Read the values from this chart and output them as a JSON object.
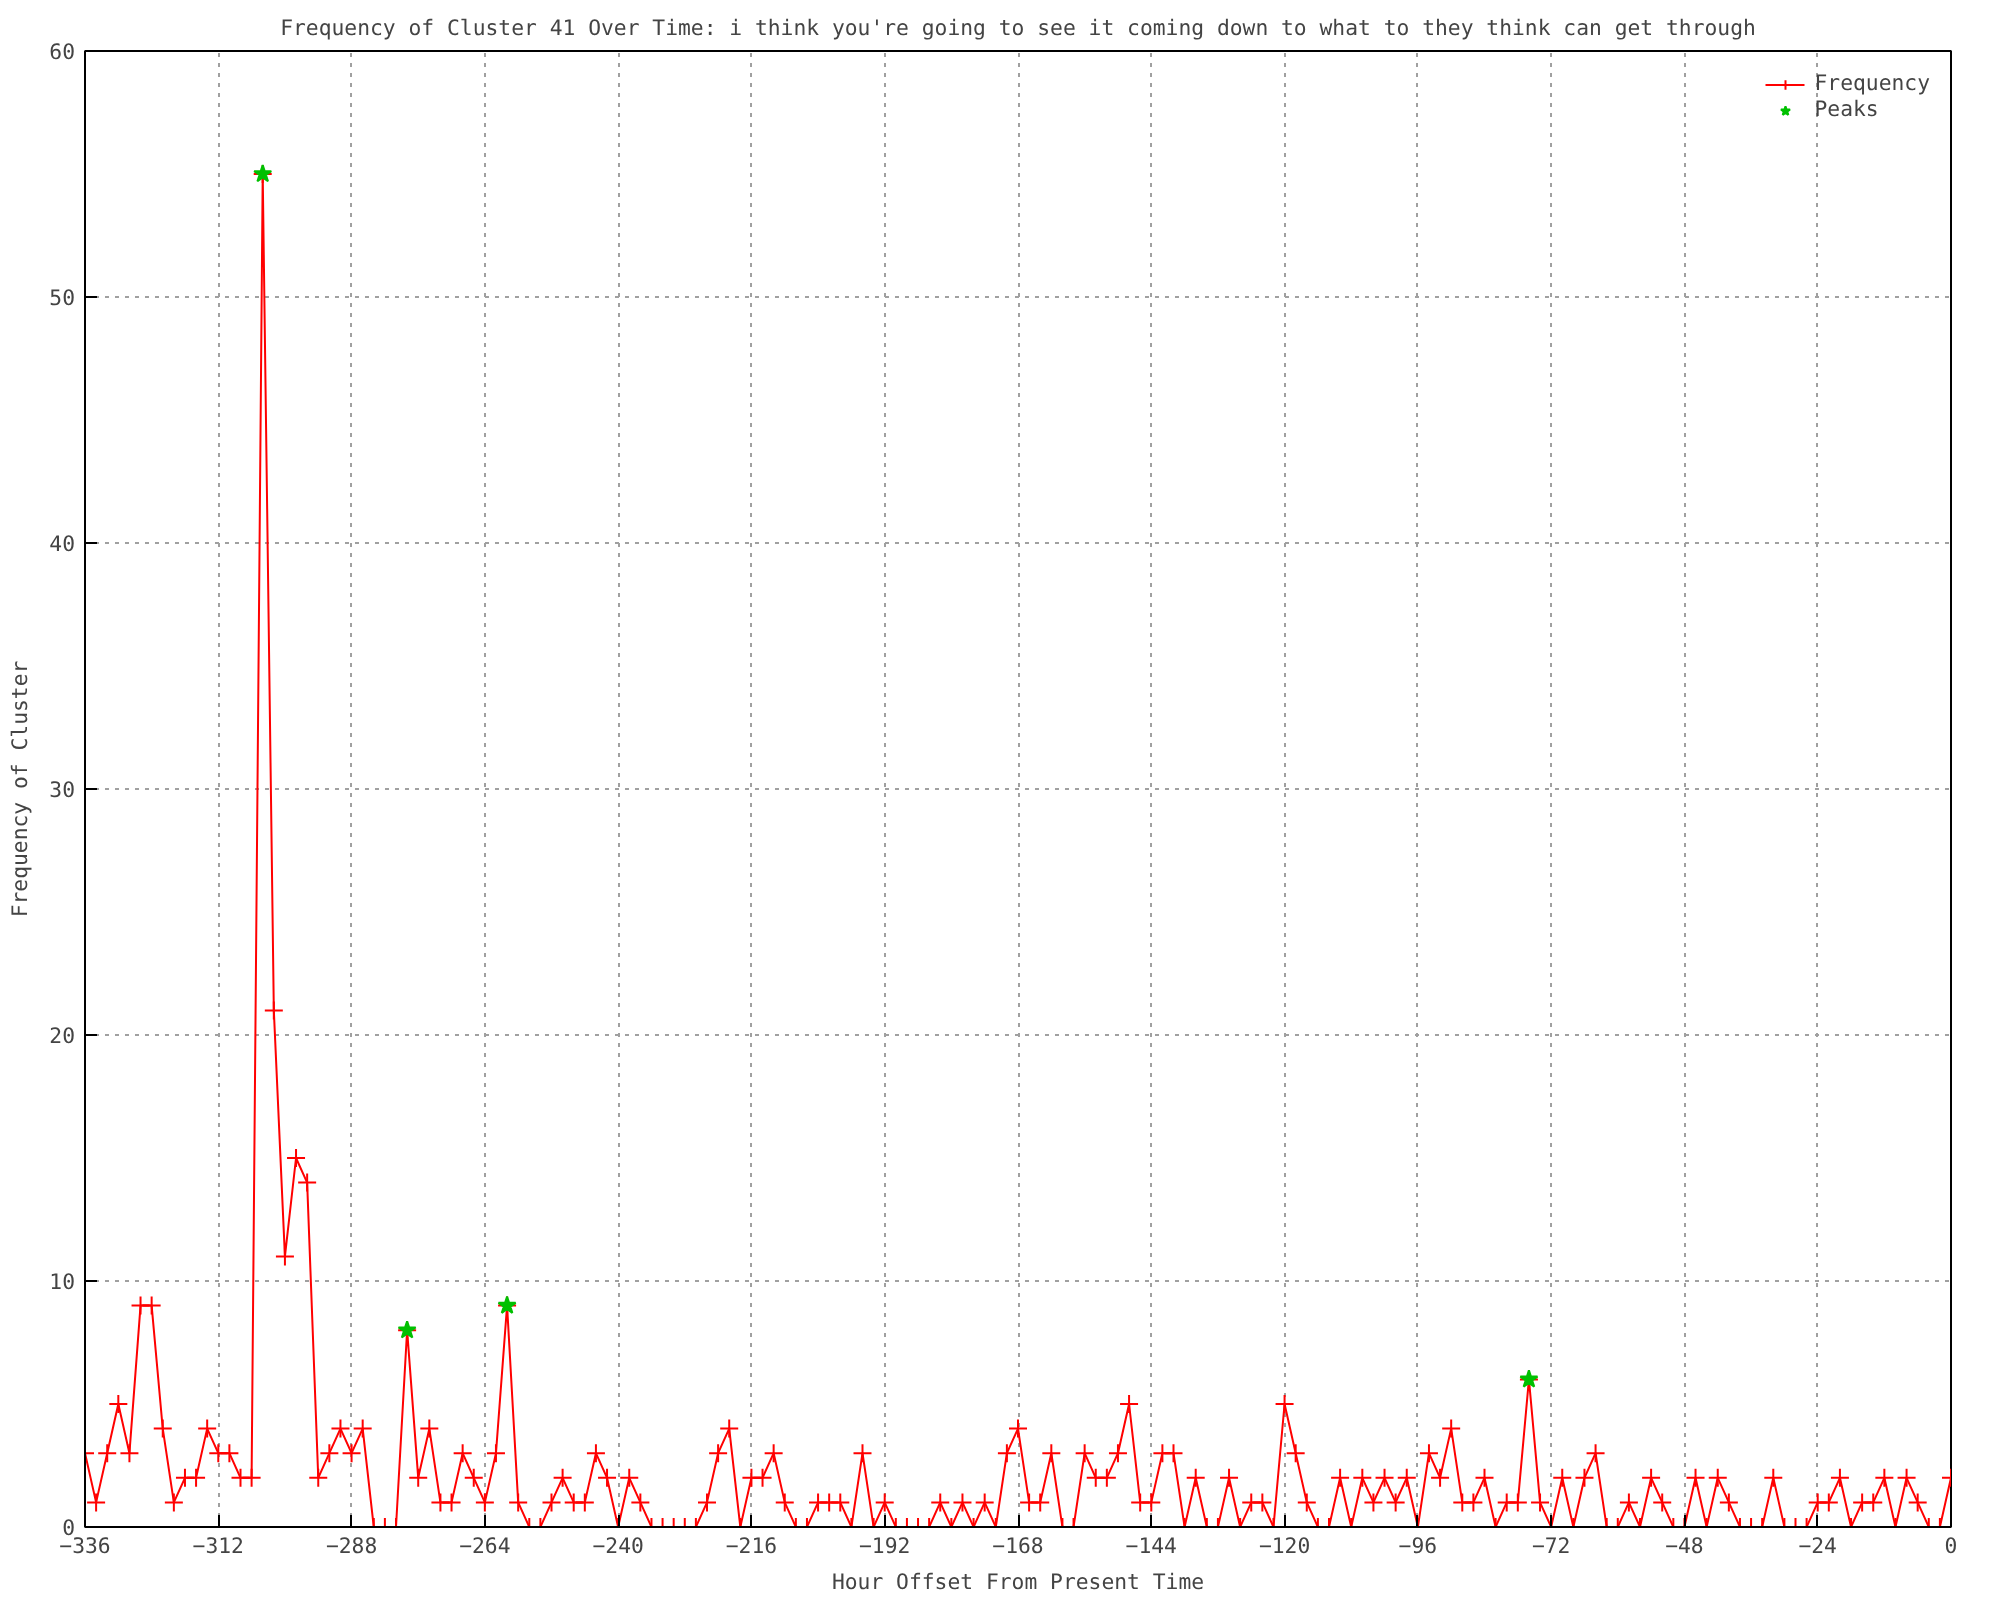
{
  "chart_data": {
    "type": "line",
    "title": "Frequency of Cluster 41 Over Time: i think you're going to see it coming down to what to they think can get through",
    "xlabel": "Hour Offset From Present Time",
    "ylabel": "Frequency of Cluster",
    "x": [
      -336,
      -334,
      -332,
      -330,
      -328,
      -326,
      -324,
      -322,
      -320,
      -318,
      -316,
      -314,
      -312,
      -310,
      -308,
      -306,
      -304,
      -302,
      -300,
      -298,
      -296,
      -294,
      -292,
      -290,
      -288,
      -286,
      -284,
      -282,
      -280,
      -278,
      -276,
      -274,
      -272,
      -270,
      -268,
      -266,
      -264,
      -262,
      -260,
      -258,
      -256,
      -254,
      -252,
      -250,
      -248,
      -246,
      -244,
      -242,
      -240,
      -238,
      -236,
      -234,
      -232,
      -230,
      -228,
      -226,
      -224,
      -222,
      -220,
      -218,
      -216,
      -214,
      -212,
      -210,
      -208,
      -206,
      -204,
      -202,
      -200,
      -198,
      -196,
      -194,
      -192,
      -190,
      -188,
      -186,
      -184,
      -182,
      -180,
      -178,
      -176,
      -174,
      -172,
      -170,
      -168,
      -166,
      -164,
      -162,
      -160,
      -158,
      -156,
      -154,
      -152,
      -150,
      -148,
      -146,
      -144,
      -142,
      -140,
      -138,
      -136,
      -134,
      -132,
      -130,
      -128,
      -126,
      -124,
      -122,
      -120,
      -118,
      -116,
      -114,
      -112,
      -110,
      -108,
      -106,
      -104,
      -102,
      -100,
      -98,
      -96,
      -94,
      -92,
      -90,
      -88,
      -86,
      -84,
      -82,
      -80,
      -78,
      -76,
      -74,
      -72,
      -70,
      -68,
      -66,
      -64,
      -62,
      -60,
      -58,
      -56,
      -54,
      -52,
      -50,
      -48,
      -46,
      -44,
      -42,
      -40,
      -38,
      -36,
      -34,
      -32,
      -30,
      -28,
      -26,
      -24,
      -22,
      -20,
      -18,
      -16,
      -14,
      -12,
      -10,
      -8,
      -6,
      -4,
      -2,
      0
    ],
    "series": [
      {
        "name": "Frequency",
        "color": "#ff0000",
        "marker": "cross",
        "values": [
          3,
          1,
          3,
          5,
          3,
          9,
          9,
          4,
          1,
          2,
          2,
          4,
          3,
          3,
          2,
          2,
          55,
          21,
          11,
          15,
          14,
          2,
          3,
          4,
          3,
          4,
          0,
          0,
          0,
          8,
          2,
          4,
          1,
          1,
          3,
          2,
          1,
          3,
          9,
          1,
          0,
          0,
          1,
          2,
          1,
          1,
          3,
          2,
          0,
          2,
          1,
          0,
          0,
          0,
          0,
          0,
          1,
          3,
          4,
          0,
          2,
          2,
          3,
          1,
          0,
          0,
          1,
          1,
          1,
          0,
          3,
          0,
          1,
          0,
          0,
          0,
          0,
          1,
          0,
          1,
          0,
          1,
          0,
          3,
          4,
          1,
          1,
          3,
          0,
          0,
          3,
          2,
          2,
          3,
          5,
          1,
          1,
          3,
          3,
          0,
          2,
          0,
          0,
          2,
          0,
          1,
          1,
          0,
          5,
          3,
          1,
          0,
          0,
          2,
          0,
          2,
          1,
          2,
          1,
          2,
          0,
          3,
          2,
          4,
          1,
          1,
          2,
          0,
          1,
          1,
          6,
          1,
          0,
          2,
          0,
          2,
          3,
          0,
          0,
          1,
          0,
          2,
          1,
          0,
          0,
          2,
          0,
          2,
          1,
          0,
          0,
          0,
          2,
          0,
          0,
          0,
          1,
          1,
          2,
          0,
          1,
          1,
          2,
          0,
          2,
          1,
          0,
          0,
          2
        ]
      },
      {
        "name": "Peaks",
        "color": "#00c000",
        "type": "scatter",
        "marker": "star",
        "x": [
          -304,
          -278,
          -260,
          -76
        ],
        "values": [
          55,
          8,
          9,
          6
        ]
      }
    ],
    "xlim": [
      -336,
      0
    ],
    "xticks": [
      -336,
      -312,
      -288,
      -264,
      -240,
      -216,
      -192,
      -168,
      -144,
      -120,
      -96,
      -72,
      -48,
      -24,
      0
    ],
    "ylim": [
      0,
      60
    ],
    "yticks": [
      0,
      10,
      20,
      30,
      40,
      50,
      60
    ],
    "grid": true,
    "legend": "top right"
  }
}
